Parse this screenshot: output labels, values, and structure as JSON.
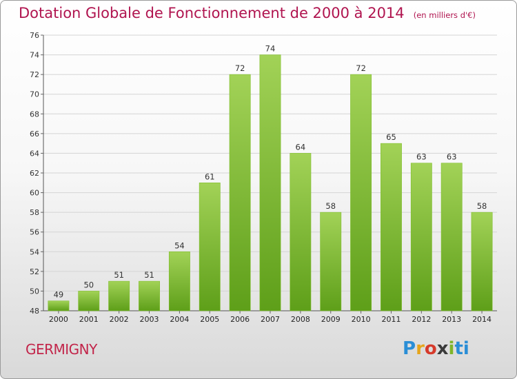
{
  "title": "Dotation Globale de Fonctionnement de 2000 à 2014",
  "unit": "(en milliers d'€)",
  "commune": "GERMIGNY",
  "logo": {
    "letters": [
      "P",
      "r",
      "o",
      "x",
      "i",
      "ti"
    ]
  },
  "colors": {
    "bar_light": "#9ccc4c",
    "bar_dark": "#5a9e1a",
    "title": "#b0144f"
  },
  "chart_data": {
    "type": "bar",
    "title": "Dotation Globale de Fonctionnement de 2000 à 2014",
    "xlabel": "",
    "ylabel": "",
    "ylim": [
      48,
      76
    ],
    "yticks": [
      48,
      50,
      52,
      54,
      56,
      58,
      60,
      62,
      64,
      66,
      68,
      70,
      72,
      74,
      76
    ],
    "grid": true,
    "categories": [
      "2000",
      "2001",
      "2002",
      "2003",
      "2004",
      "2005",
      "2006",
      "2007",
      "2008",
      "2009",
      "2010",
      "2011",
      "2012",
      "2013",
      "2014"
    ],
    "values": [
      49,
      50,
      51,
      51,
      54,
      61,
      72,
      74,
      64,
      58,
      72,
      65,
      63,
      63,
      58
    ]
  }
}
